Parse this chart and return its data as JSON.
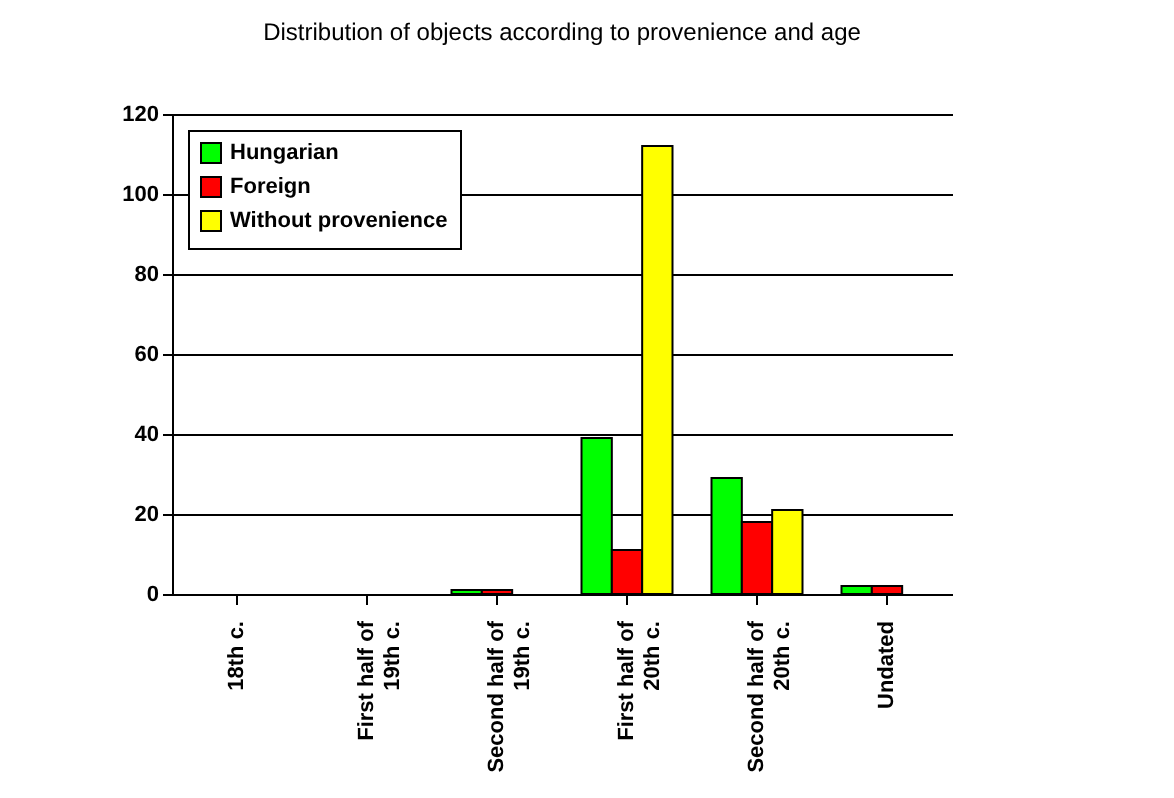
{
  "chart_data": {
    "type": "bar",
    "title": "Distribution of objects according to provenience and age",
    "categories": [
      "18th c.",
      "First half of 19th c.",
      "Second half of 19th c.",
      "First half of 20th c.",
      "Second half of 20th c.",
      "Undated"
    ],
    "series": [
      {
        "name": "Hungarian",
        "color": "#00ff00",
        "values": [
          null,
          null,
          1,
          39,
          29,
          2
        ]
      },
      {
        "name": "Foreign",
        "color": "#ff0000",
        "values": [
          null,
          null,
          1,
          11,
          18,
          2
        ]
      },
      {
        "name": "Without provenience",
        "color": "#ffff00",
        "values": [
          null,
          null,
          null,
          112,
          21,
          null
        ]
      }
    ],
    "ylim": [
      0,
      120
    ],
    "yticks": [
      0,
      20,
      40,
      60,
      80,
      100,
      120
    ],
    "grid": "y",
    "legend": "top left"
  }
}
